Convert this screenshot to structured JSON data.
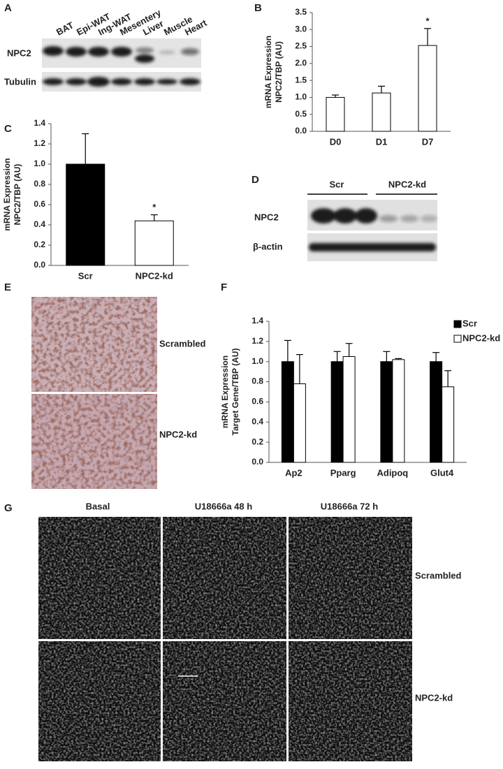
{
  "panel_labels": [
    "A",
    "B",
    "C",
    "D",
    "E",
    "F",
    "G"
  ],
  "blot_a": {
    "lanes": [
      "BAT",
      "Epi-WAT",
      "Ing-WAT",
      "Mesentery",
      "Liver",
      "Muscle",
      "Heart"
    ],
    "rows": [
      "NPC2",
      "Tubulin"
    ]
  },
  "blot_d": {
    "groups": [
      "Scr",
      "NPC2-kd"
    ],
    "rows": [
      "NPC2",
      "β-actin"
    ]
  },
  "image_e": {
    "rows": [
      "Scrambled",
      "NPC2-kd"
    ]
  },
  "image_g": {
    "columns": [
      "Basal",
      "U18666a 48 h",
      "U18666a 72 h"
    ],
    "rows": [
      "Scrambled",
      "NPC2-kd"
    ]
  },
  "chart_data": [
    {
      "type": "bar",
      "y_label": [
        "mRNA Expression",
        "NPC2/TBP (AU)"
      ],
      "categories": [
        "D0",
        "D1",
        "D7"
      ],
      "values": [
        1.0,
        1.13,
        2.53
      ],
      "errors": [
        0.07,
        0.2,
        0.5
      ],
      "colors": [
        "#ffffff",
        "#ffffff",
        "#ffffff"
      ],
      "ylim": [
        0,
        3.5
      ],
      "yticks": [
        {
          "value": 0,
          "label": "0.0"
        },
        {
          "value": 0.5,
          "label": "0.5"
        },
        {
          "value": 1,
          "label": "1.0"
        },
        {
          "value": 1.5,
          "label": "1.5"
        },
        {
          "value": 2,
          "label": "2.0"
        },
        {
          "value": 2.5,
          "label": "2.5"
        },
        {
          "value": 3,
          "label": "3.0"
        },
        {
          "value": 3.5,
          "label": "3.5"
        }
      ],
      "annotations": [
        {
          "text": "*",
          "category": "D7"
        }
      ]
    },
    {
      "type": "bar",
      "y_label": [
        "mRNA Expression",
        "NPC2/TBP (AU)"
      ],
      "categories": [
        "Scr",
        "NPC2-kd"
      ],
      "values": [
        1.0,
        0.44
      ],
      "errors": [
        0.3,
        0.06
      ],
      "colors": [
        "#000000",
        "#ffffff"
      ],
      "ylim": [
        0,
        1.4
      ],
      "yticks": [
        {
          "value": 0,
          "label": "0.0"
        },
        {
          "value": 0.2,
          "label": "0.2"
        },
        {
          "value": 0.4,
          "label": "0.4"
        },
        {
          "value": 0.6,
          "label": "0.6"
        },
        {
          "value": 0.8,
          "label": "0.8"
        },
        {
          "value": 1,
          "label": "1.0"
        },
        {
          "value": 1.2,
          "label": "1.2"
        },
        {
          "value": 1.4,
          "label": "1.4"
        }
      ],
      "annotations": [
        {
          "text": "*",
          "category": "NPC2-kd"
        }
      ]
    },
    {
      "type": "grouped_bar",
      "y_label": [
        "mRNA Expression",
        "Target Gene/TBP (AU)"
      ],
      "categories": [
        "Ap2",
        "Pparg",
        "Adipoq",
        "Glut4"
      ],
      "series": [
        {
          "name": "Scr",
          "color": "#000000",
          "values": [
            1.0,
            1.0,
            1.0,
            1.0
          ],
          "errors": [
            0.21,
            0.1,
            0.1,
            0.09
          ]
        },
        {
          "name": "NPC2-kd",
          "color": "#ffffff",
          "values": [
            0.78,
            1.05,
            1.02,
            0.75
          ],
          "errors": [
            0.29,
            0.13,
            0.01,
            0.16
          ]
        }
      ],
      "legend": "right",
      "ylim": [
        0,
        1.4
      ],
      "yticks": [
        {
          "value": 0,
          "label": "0.0"
        },
        {
          "value": 0.2,
          "label": "0.2"
        },
        {
          "value": 0.4,
          "label": "0.4"
        },
        {
          "value": 0.6,
          "label": "0.6"
        },
        {
          "value": 0.8,
          "label": "0.8"
        },
        {
          "value": 1,
          "label": "1.0"
        },
        {
          "value": 1.2,
          "label": "1.2"
        },
        {
          "value": 1.4,
          "label": "1.4"
        }
      ]
    }
  ]
}
